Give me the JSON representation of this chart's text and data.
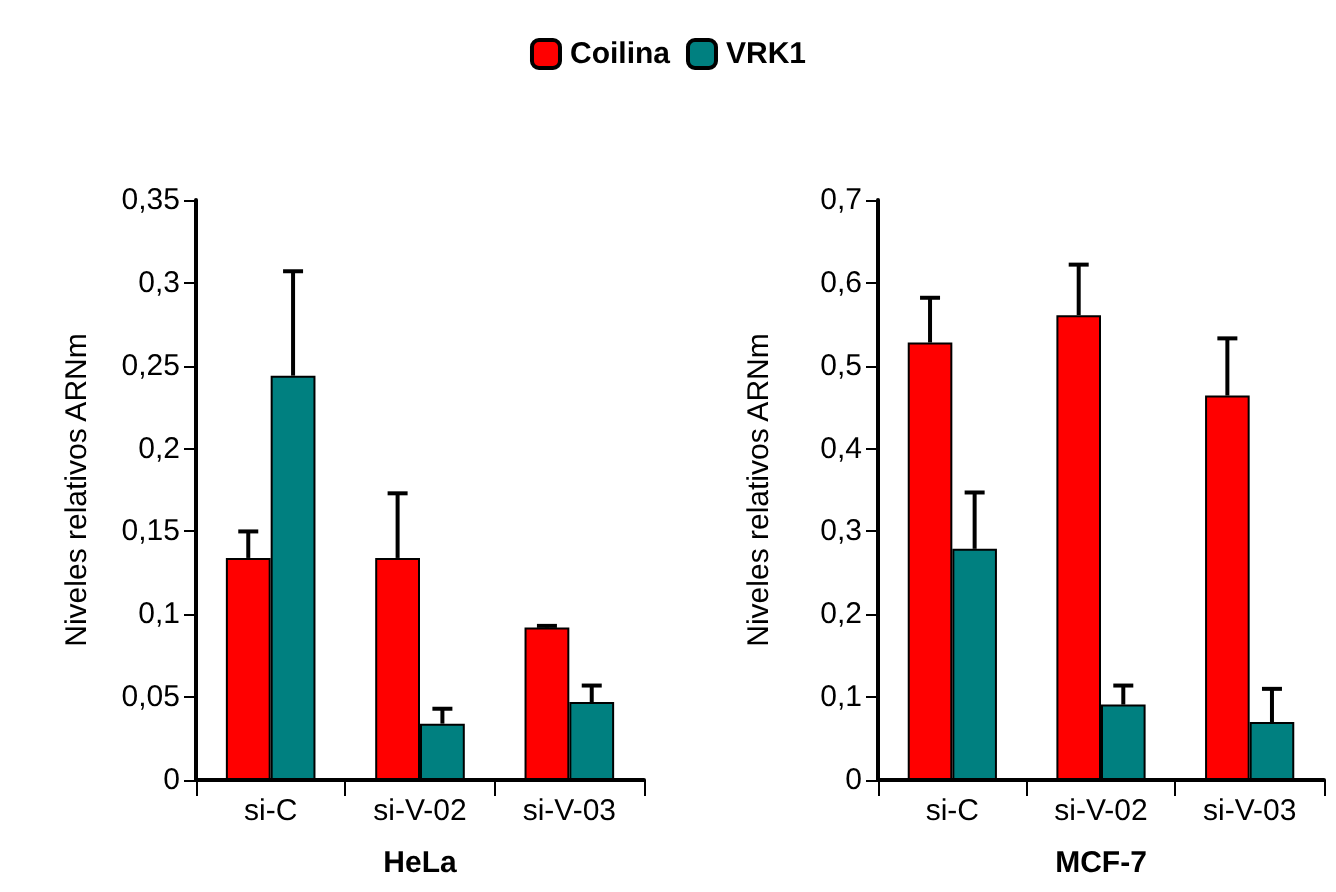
{
  "chart_data": [
    {
      "type": "bar",
      "xlabel": "HeLa",
      "ylabel": "Niveles relativos ARNm",
      "categories": [
        "si-C",
        "si-V-02",
        "si-V-03"
      ],
      "series": [
        {
          "name": "Coilina",
          "color": "#ff0000",
          "values": [
            0.134,
            0.134,
            0.092
          ],
          "errors": [
            [
              0.134,
              0.15
            ],
            [
              0.134,
              0.173
            ],
            [
              0.092,
              0.093
            ]
          ]
        },
        {
          "name": "VRK1",
          "color": "#008080",
          "values": [
            0.244,
            0.034,
            0.047
          ],
          "errors": [
            [
              0.244,
              0.307
            ],
            [
              0.034,
              0.043
            ],
            [
              0.047,
              0.057
            ]
          ]
        }
      ],
      "ylim": [
        0,
        0.35
      ],
      "yticks": [
        0,
        {
          "value": 0.05,
          "label": "0,05"
        },
        {
          "value": 0.1,
          "label": "0,1"
        },
        {
          "value": 0.15,
          "label": "0,15"
        },
        {
          "value": 0.2,
          "label": "0,2"
        },
        {
          "value": 0.25,
          "label": "0,25"
        },
        {
          "value": 0.3,
          "label": "0,3"
        },
        {
          "value": 0.35,
          "label": "0,35"
        }
      ],
      "grid": false,
      "legend": "top"
    },
    {
      "type": "bar",
      "xlabel": "MCF-7",
      "ylabel": "Niveles relativos ARNm",
      "categories": [
        "si-C",
        "si-V-02",
        "si-V-03"
      ],
      "series": [
        {
          "color": "#ff0000",
          "values": [
            0.528,
            0.561,
            0.464
          ],
          "errors": [
            [
              0.528,
              0.582
            ],
            [
              0.561,
              0.622
            ],
            [
              0.464,
              0.533
            ]
          ]
        },
        {
          "color": "#008080",
          "values": [
            0.279,
            0.091,
            0.07
          ],
          "errors": [
            [
              0.279,
              0.347
            ],
            [
              0.091,
              0.114
            ],
            [
              0.07,
              0.11
            ]
          ]
        }
      ],
      "ylim": [
        0,
        0.7
      ],
      "yticks": [
        0,
        {
          "value": 0.1,
          "label": "0,1"
        },
        {
          "value": 0.2,
          "label": "0,2"
        },
        {
          "value": 0.3,
          "label": "0,3"
        },
        {
          "value": 0.4,
          "label": "0,4"
        },
        {
          "value": 0.5,
          "label": "0,5"
        },
        {
          "value": 0.6,
          "label": "0,6"
        },
        {
          "value": 0.7,
          "label": "0,7"
        }
      ],
      "grid": false
    }
  ]
}
